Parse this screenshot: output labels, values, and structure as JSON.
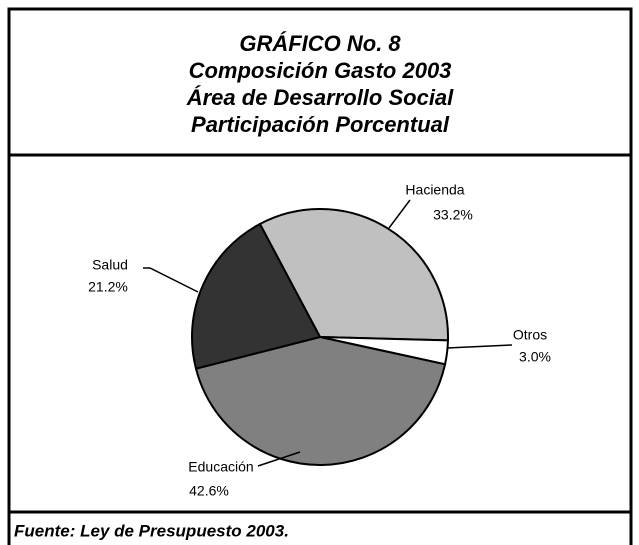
{
  "chart_data": {
    "type": "pie",
    "title": "GRÁFICO  No. 8",
    "subtitle": [
      "Composición Gasto 2003",
      "Área de Desarrollo Social",
      "Participación Porcentual"
    ],
    "categories": [
      "Hacienda",
      "Otros",
      "Educación",
      "Salud"
    ],
    "values": [
      33.2,
      3.0,
      42.6,
      21.2
    ],
    "value_labels": [
      "33.2%",
      "3.0%",
      "42.6%",
      "21.2%"
    ],
    "colors": [
      "#c0c0c0",
      "#ffffff",
      "#808080",
      "#333333"
    ],
    "source": "Fuente: Ley de Presupuesto 2003."
  }
}
